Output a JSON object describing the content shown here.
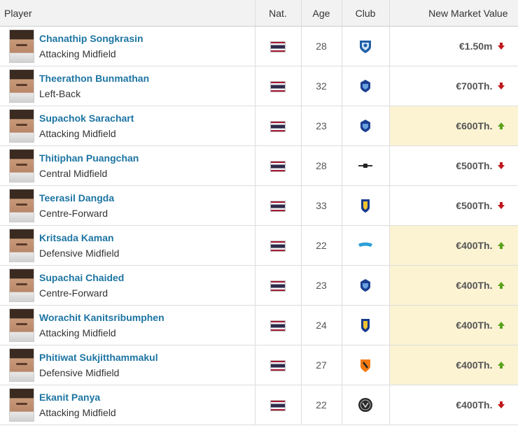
{
  "header": {
    "player": "Player",
    "nat": "Nat.",
    "age": "Age",
    "club": "Club",
    "value": "New Market Value"
  },
  "colors": {
    "up": "#5ba21c",
    "down": "#c0161b",
    "link": "#1d75a3",
    "highlight": "#fcf3d3"
  },
  "rows": [
    {
      "name": "Chanathip Songkrasin",
      "position": "Attacking Midfield",
      "nationality_flag": "thailand-flag",
      "age": "28",
      "club_icon": "club-crest-blue-white",
      "value": "€1.50m",
      "trend": "down"
    },
    {
      "name": "Theerathon Bunmathan",
      "position": "Left-Back",
      "nationality_flag": "thailand-flag",
      "age": "32",
      "club_icon": "club-crest-blue",
      "value": "€700Th.",
      "trend": "down"
    },
    {
      "name": "Supachok Sarachart",
      "position": "Attacking Midfield",
      "nationality_flag": "thailand-flag",
      "age": "23",
      "club_icon": "club-crest-blue",
      "value": "€600Th.",
      "trend": "up"
    },
    {
      "name": "Thitiphan Puangchan",
      "position": "Central Midfield",
      "nationality_flag": "thailand-flag",
      "age": "28",
      "club_icon": "club-crest-wings",
      "value": "€500Th.",
      "trend": "down"
    },
    {
      "name": "Teerasil Dangda",
      "position": "Centre-Forward",
      "nationality_flag": "thailand-flag",
      "age": "33",
      "club_icon": "club-crest-shield-blue",
      "value": "€500Th.",
      "trend": "down"
    },
    {
      "name": "Kritsada Kaman",
      "position": "Defensive Midfield",
      "nationality_flag": "thailand-flag",
      "age": "22",
      "club_icon": "club-crest-light-blue",
      "value": "€400Th.",
      "trend": "up"
    },
    {
      "name": "Supachai Chaided",
      "position": "Centre-Forward",
      "nationality_flag": "thailand-flag",
      "age": "23",
      "club_icon": "club-crest-blue",
      "value": "€400Th.",
      "trend": "up"
    },
    {
      "name": "Worachit Kanitsribumphen",
      "position": "Attacking Midfield",
      "nationality_flag": "thailand-flag",
      "age": "24",
      "club_icon": "club-crest-shield-blue",
      "value": "€400Th.",
      "trend": "up"
    },
    {
      "name": "Phitiwat Sukjitthammakul",
      "position": "Defensive Midfield",
      "nationality_flag": "thailand-flag",
      "age": "27",
      "club_icon": "club-crest-orange",
      "value": "€400Th.",
      "trend": "up"
    },
    {
      "name": "Ekanit Panya",
      "position": "Attacking Midfield",
      "nationality_flag": "thailand-flag",
      "age": "22",
      "club_icon": "club-crest-dark-round",
      "value": "€400Th.",
      "trend": "down"
    }
  ]
}
